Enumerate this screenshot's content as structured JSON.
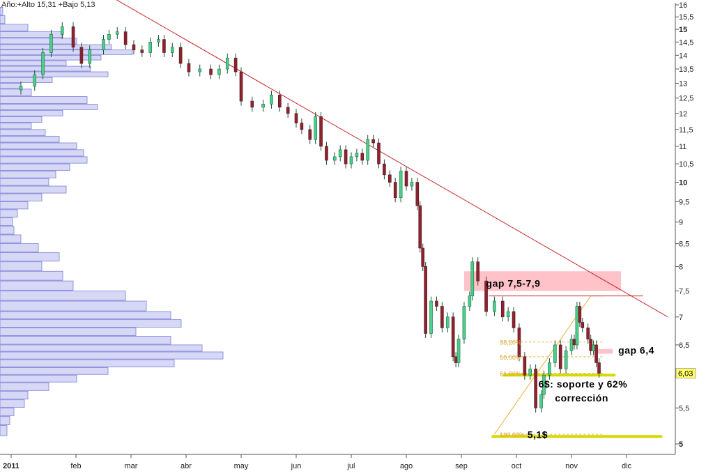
{
  "header_text": "Año:+Alto 15,31 +Bajo 5,13",
  "chart_data": {
    "type": "candlestick",
    "title": "",
    "y_scale": "log",
    "ylim": [
      4.75,
      16.4
    ],
    "y_ticks": [
      {
        "v": 16,
        "label": "16"
      },
      {
        "v": 15.5,
        "label": "15,5"
      },
      {
        "v": 15,
        "label": "15",
        "bold": true
      },
      {
        "v": 14.5,
        "label": "14,5"
      },
      {
        "v": 14,
        "label": "14"
      },
      {
        "v": 13.5,
        "label": "13,5"
      },
      {
        "v": 13,
        "label": "13"
      },
      {
        "v": 12.5,
        "label": "12,5"
      },
      {
        "v": 12,
        "label": "12"
      },
      {
        "v": 11.5,
        "label": "11,5"
      },
      {
        "v": 11,
        "label": "11"
      },
      {
        "v": 10.5,
        "label": "10,5"
      },
      {
        "v": 10,
        "label": "10",
        "bold": true
      },
      {
        "v": 9.5,
        "label": "9,5"
      },
      {
        "v": 9,
        "label": "9"
      },
      {
        "v": 8.5,
        "label": "8,5"
      },
      {
        "v": 8,
        "label": "8"
      },
      {
        "v": 7.5,
        "label": "7,5"
      },
      {
        "v": 7,
        "label": "7"
      },
      {
        "v": 6.5,
        "label": "6,5"
      },
      {
        "v": 6,
        "label": "6"
      },
      {
        "v": 5.5,
        "label": "5,5"
      },
      {
        "v": 5,
        "label": "5",
        "bold": true
      }
    ],
    "x_labels": [
      {
        "label": "2011",
        "bold": true
      },
      {
        "label": "feb"
      },
      {
        "label": "mar"
      },
      {
        "label": "abr"
      },
      {
        "label": "may"
      },
      {
        "label": "jun"
      },
      {
        "label": "jul"
      },
      {
        "label": "ago"
      },
      {
        "label": "sep"
      },
      {
        "label": "oct"
      },
      {
        "label": "nov"
      },
      {
        "label": "dic"
      }
    ],
    "last_price": "6,03",
    "price_series": [
      {
        "m": 0.0,
        "c": 12.9
      },
      {
        "m": 0.25,
        "c": 13.3
      },
      {
        "m": 0.4,
        "c": 14.1
      },
      {
        "m": 0.55,
        "c": 14.8
      },
      {
        "m": 0.75,
        "c": 15.1
      },
      {
        "m": 0.95,
        "c": 14.3
      },
      {
        "m": 1.1,
        "c": 13.7
      },
      {
        "m": 1.25,
        "c": 14.2
      },
      {
        "m": 1.5,
        "c": 14.6
      },
      {
        "m": 1.6,
        "c": 14.8
      },
      {
        "m": 1.75,
        "c": 14.9
      },
      {
        "m": 1.9,
        "c": 14.4
      },
      {
        "m": 2.05,
        "c": 14.2
      },
      {
        "m": 2.2,
        "c": 14.1
      },
      {
        "m": 2.35,
        "c": 14.5
      },
      {
        "m": 2.5,
        "c": 14.6
      },
      {
        "m": 2.6,
        "c": 14.1
      },
      {
        "m": 2.75,
        "c": 14.3
      },
      {
        "m": 2.9,
        "c": 13.7
      },
      {
        "m": 3.05,
        "c": 13.4
      },
      {
        "m": 3.25,
        "c": 13.5
      },
      {
        "m": 3.45,
        "c": 13.3
      },
      {
        "m": 3.6,
        "c": 13.5
      },
      {
        "m": 3.75,
        "c": 13.9
      },
      {
        "m": 3.9,
        "c": 13.4
      },
      {
        "m": 4.0,
        "c": 12.4
      },
      {
        "m": 4.2,
        "c": 12.2
      },
      {
        "m": 4.4,
        "c": 12.3
      },
      {
        "m": 4.55,
        "c": 12.6
      },
      {
        "m": 4.7,
        "c": 12.2
      },
      {
        "m": 4.85,
        "c": 12.0
      },
      {
        "m": 5.0,
        "c": 11.7
      },
      {
        "m": 5.1,
        "c": 11.5
      },
      {
        "m": 5.25,
        "c": 11.2
      },
      {
        "m": 5.35,
        "c": 11.9
      },
      {
        "m": 5.45,
        "c": 11.0
      },
      {
        "m": 5.55,
        "c": 10.6
      },
      {
        "m": 5.7,
        "c": 10.7
      },
      {
        "m": 5.8,
        "c": 10.9
      },
      {
        "m": 5.9,
        "c": 10.5
      },
      {
        "m": 6.0,
        "c": 10.7
      },
      {
        "m": 6.1,
        "c": 10.8
      },
      {
        "m": 6.2,
        "c": 10.6
      },
      {
        "m": 6.3,
        "c": 11.2
      },
      {
        "m": 6.4,
        "c": 11.1
      },
      {
        "m": 6.5,
        "c": 10.5
      },
      {
        "m": 6.6,
        "c": 10.2
      },
      {
        "m": 6.7,
        "c": 10.0
      },
      {
        "m": 6.8,
        "c": 9.6
      },
      {
        "m": 6.9,
        "c": 10.3
      },
      {
        "m": 7.0,
        "c": 9.9
      },
      {
        "m": 7.1,
        "c": 10.0
      },
      {
        "m": 7.2,
        "c": 9.4
      },
      {
        "m": 7.25,
        "c": 8.4
      },
      {
        "m": 7.3,
        "c": 8.0
      },
      {
        "m": 7.35,
        "c": 6.7
      },
      {
        "m": 7.45,
        "c": 7.3
      },
      {
        "m": 7.55,
        "c": 7.2
      },
      {
        "m": 7.65,
        "c": 6.8
      },
      {
        "m": 7.75,
        "c": 7.0
      },
      {
        "m": 7.85,
        "c": 6.3
      },
      {
        "m": 7.9,
        "c": 6.2
      },
      {
        "m": 7.95,
        "c": 6.6
      },
      {
        "m": 8.05,
        "c": 7.2
      },
      {
        "m": 8.15,
        "c": 7.4
      },
      {
        "m": 8.2,
        "c": 8.1
      },
      {
        "m": 8.3,
        "c": 7.7
      },
      {
        "m": 8.45,
        "c": 7.1
      },
      {
        "m": 8.6,
        "c": 7.3
      },
      {
        "m": 8.75,
        "c": 7.0
      },
      {
        "m": 8.85,
        "c": 7.1
      },
      {
        "m": 8.95,
        "c": 6.8
      },
      {
        "m": 9.05,
        "c": 6.3
      },
      {
        "m": 9.15,
        "c": 6.0
      },
      {
        "m": 9.25,
        "c": 6.1
      },
      {
        "m": 9.35,
        "c": 5.5
      },
      {
        "m": 9.45,
        "c": 5.7
      },
      {
        "m": 9.5,
        "c": 6.0
      },
      {
        "m": 9.6,
        "c": 6.2
      },
      {
        "m": 9.7,
        "c": 6.5
      },
      {
        "m": 9.8,
        "c": 6.1
      },
      {
        "m": 9.9,
        "c": 6.4
      },
      {
        "m": 10.0,
        "c": 6.6
      },
      {
        "m": 10.05,
        "c": 6.5
      },
      {
        "m": 10.1,
        "c": 7.2
      },
      {
        "m": 10.15,
        "c": 6.9
      },
      {
        "m": 10.2,
        "c": 6.8
      },
      {
        "m": 10.3,
        "c": 6.6
      },
      {
        "m": 10.35,
        "c": 6.4
      },
      {
        "m": 10.4,
        "c": 6.5
      },
      {
        "m": 10.45,
        "c": 6.2
      },
      {
        "m": 10.5,
        "c": 6.03
      }
    ],
    "annotations": {
      "trendline": {
        "start": {
          "m": 1.6,
          "v": 16.4
        },
        "end": {
          "m": 11.75,
          "v": 7.0
        },
        "color": "#c8262d"
      },
      "gap_zone_1": {
        "label": "gap 7,5-7,9",
        "low": 7.5,
        "high": 7.9,
        "m_start": 8.05,
        "m_end": 10.9,
        "color": "#ffc2c8"
      },
      "gap_zone_2": {
        "label": "gap 6,4",
        "low": 6.35,
        "high": 6.43,
        "m_start": 10.45,
        "m_end": 10.75,
        "color": "#ffc2c8"
      },
      "resistance_line": {
        "value": 7.4,
        "m_start": 8.5,
        "m_end": 11.3,
        "color": "#c8262d"
      },
      "support_6": {
        "label": "6$: soporte y 62%",
        "label2": "corrección",
        "value": 6.0,
        "m_start": 8.75,
        "m_end": 10.8,
        "color": "#d8d800"
      },
      "support_5_1": {
        "label": "5,1$",
        "value": 5.1,
        "m_start": 8.55,
        "m_end": 11.65,
        "color": "#d8d800"
      },
      "fib_levels": [
        {
          "label": "38,20%",
          "value": 6.55
        },
        {
          "label": "50,00%",
          "value": 6.3
        },
        {
          "label": "61,80%",
          "value": 6.03
        },
        {
          "label": "100,00%",
          "value": 5.13
        }
      ],
      "fib_x": {
        "m_start": 8.7,
        "m_end": 10.6
      },
      "fib_diag": {
        "from": {
          "m": 8.6,
          "v": 5.13
        },
        "to": {
          "m": 10.35,
          "v": 7.4
        },
        "color": "#e8b23a"
      }
    },
    "volume_profile": {
      "price_bins": [
        [
          15.55,
          15.9,
          4
        ],
        [
          15.2,
          15.55,
          7
        ],
        [
          14.9,
          15.2,
          40
        ],
        [
          14.65,
          14.9,
          90
        ],
        [
          14.4,
          14.65,
          110
        ],
        [
          14.2,
          14.4,
          160
        ],
        [
          14.0,
          14.2,
          190
        ],
        [
          13.8,
          14.0,
          145
        ],
        [
          13.6,
          13.8,
          95
        ],
        [
          13.4,
          13.6,
          130
        ],
        [
          13.2,
          13.4,
          155
        ],
        [
          13.0,
          13.2,
          75
        ],
        [
          12.8,
          13.0,
          30
        ],
        [
          12.55,
          12.8,
          45
        ],
        [
          12.3,
          12.55,
          125
        ],
        [
          12.1,
          12.3,
          140
        ],
        [
          11.9,
          12.1,
          90
        ],
        [
          11.7,
          11.9,
          60
        ],
        [
          11.5,
          11.7,
          45
        ],
        [
          11.3,
          11.5,
          65
        ],
        [
          11.1,
          11.3,
          85
        ],
        [
          10.9,
          11.1,
          110
        ],
        [
          10.7,
          10.9,
          120
        ],
        [
          10.5,
          10.7,
          125
        ],
        [
          10.3,
          10.5,
          100
        ],
        [
          10.1,
          10.3,
          80
        ],
        [
          9.9,
          10.1,
          70
        ],
        [
          9.7,
          9.9,
          95
        ],
        [
          9.5,
          9.7,
          60
        ],
        [
          9.3,
          9.5,
          40
        ],
        [
          9.1,
          9.3,
          25
        ],
        [
          8.9,
          9.1,
          18
        ],
        [
          8.7,
          8.9,
          20
        ],
        [
          8.5,
          8.7,
          30
        ],
        [
          8.3,
          8.5,
          55
        ],
        [
          8.1,
          8.3,
          85
        ],
        [
          7.9,
          8.1,
          60
        ],
        [
          7.7,
          7.9,
          90
        ],
        [
          7.5,
          7.7,
          105
        ],
        [
          7.3,
          7.5,
          180
        ],
        [
          7.1,
          7.3,
          210
        ],
        [
          6.95,
          7.1,
          245
        ],
        [
          6.8,
          6.95,
          260
        ],
        [
          6.65,
          6.8,
          195
        ],
        [
          6.5,
          6.65,
          245
        ],
        [
          6.38,
          6.5,
          290
        ],
        [
          6.25,
          6.38,
          320
        ],
        [
          6.12,
          6.25,
          250
        ],
        [
          6.0,
          6.12,
          155
        ],
        [
          5.88,
          6.0,
          110
        ],
        [
          5.75,
          5.88,
          70
        ],
        [
          5.62,
          5.75,
          40
        ],
        [
          5.5,
          5.62,
          35
        ],
        [
          5.38,
          5.5,
          20
        ],
        [
          5.25,
          5.38,
          14
        ],
        [
          5.1,
          5.25,
          10
        ]
      ]
    }
  }
}
